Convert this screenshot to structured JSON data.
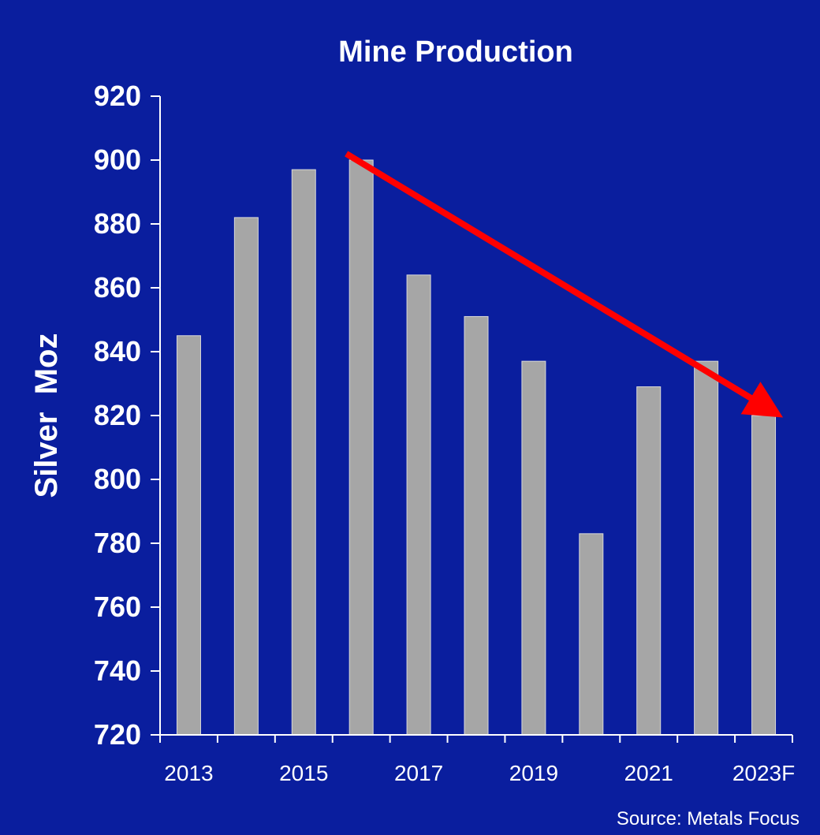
{
  "chart_data": {
    "type": "bar",
    "title": "Mine Production",
    "ylabel": "Silver  Moz",
    "xlabel": "",
    "ylim": [
      720,
      920
    ],
    "yticks": [
      720,
      740,
      760,
      780,
      800,
      820,
      840,
      860,
      880,
      900,
      920
    ],
    "categories": [
      "2013",
      "2014",
      "2015",
      "2016",
      "2017",
      "2018",
      "2019",
      "2020",
      "2021",
      "2022",
      "2023F"
    ],
    "shown_x_labels": [
      "2013",
      "2015",
      "2017",
      "2019",
      "2021",
      "2023F"
    ],
    "values": [
      845,
      882,
      897,
      900,
      864,
      851,
      837,
      783,
      829,
      837,
      820
    ],
    "bar_color": "#a6a6a6",
    "background_color": "#0a1e9e",
    "trend_arrow": {
      "from": [
        "2016",
        901
      ],
      "to": [
        "2023F",
        819
      ],
      "color": "#ff0000"
    },
    "grid": false,
    "source": "Source: Metals Focus"
  }
}
